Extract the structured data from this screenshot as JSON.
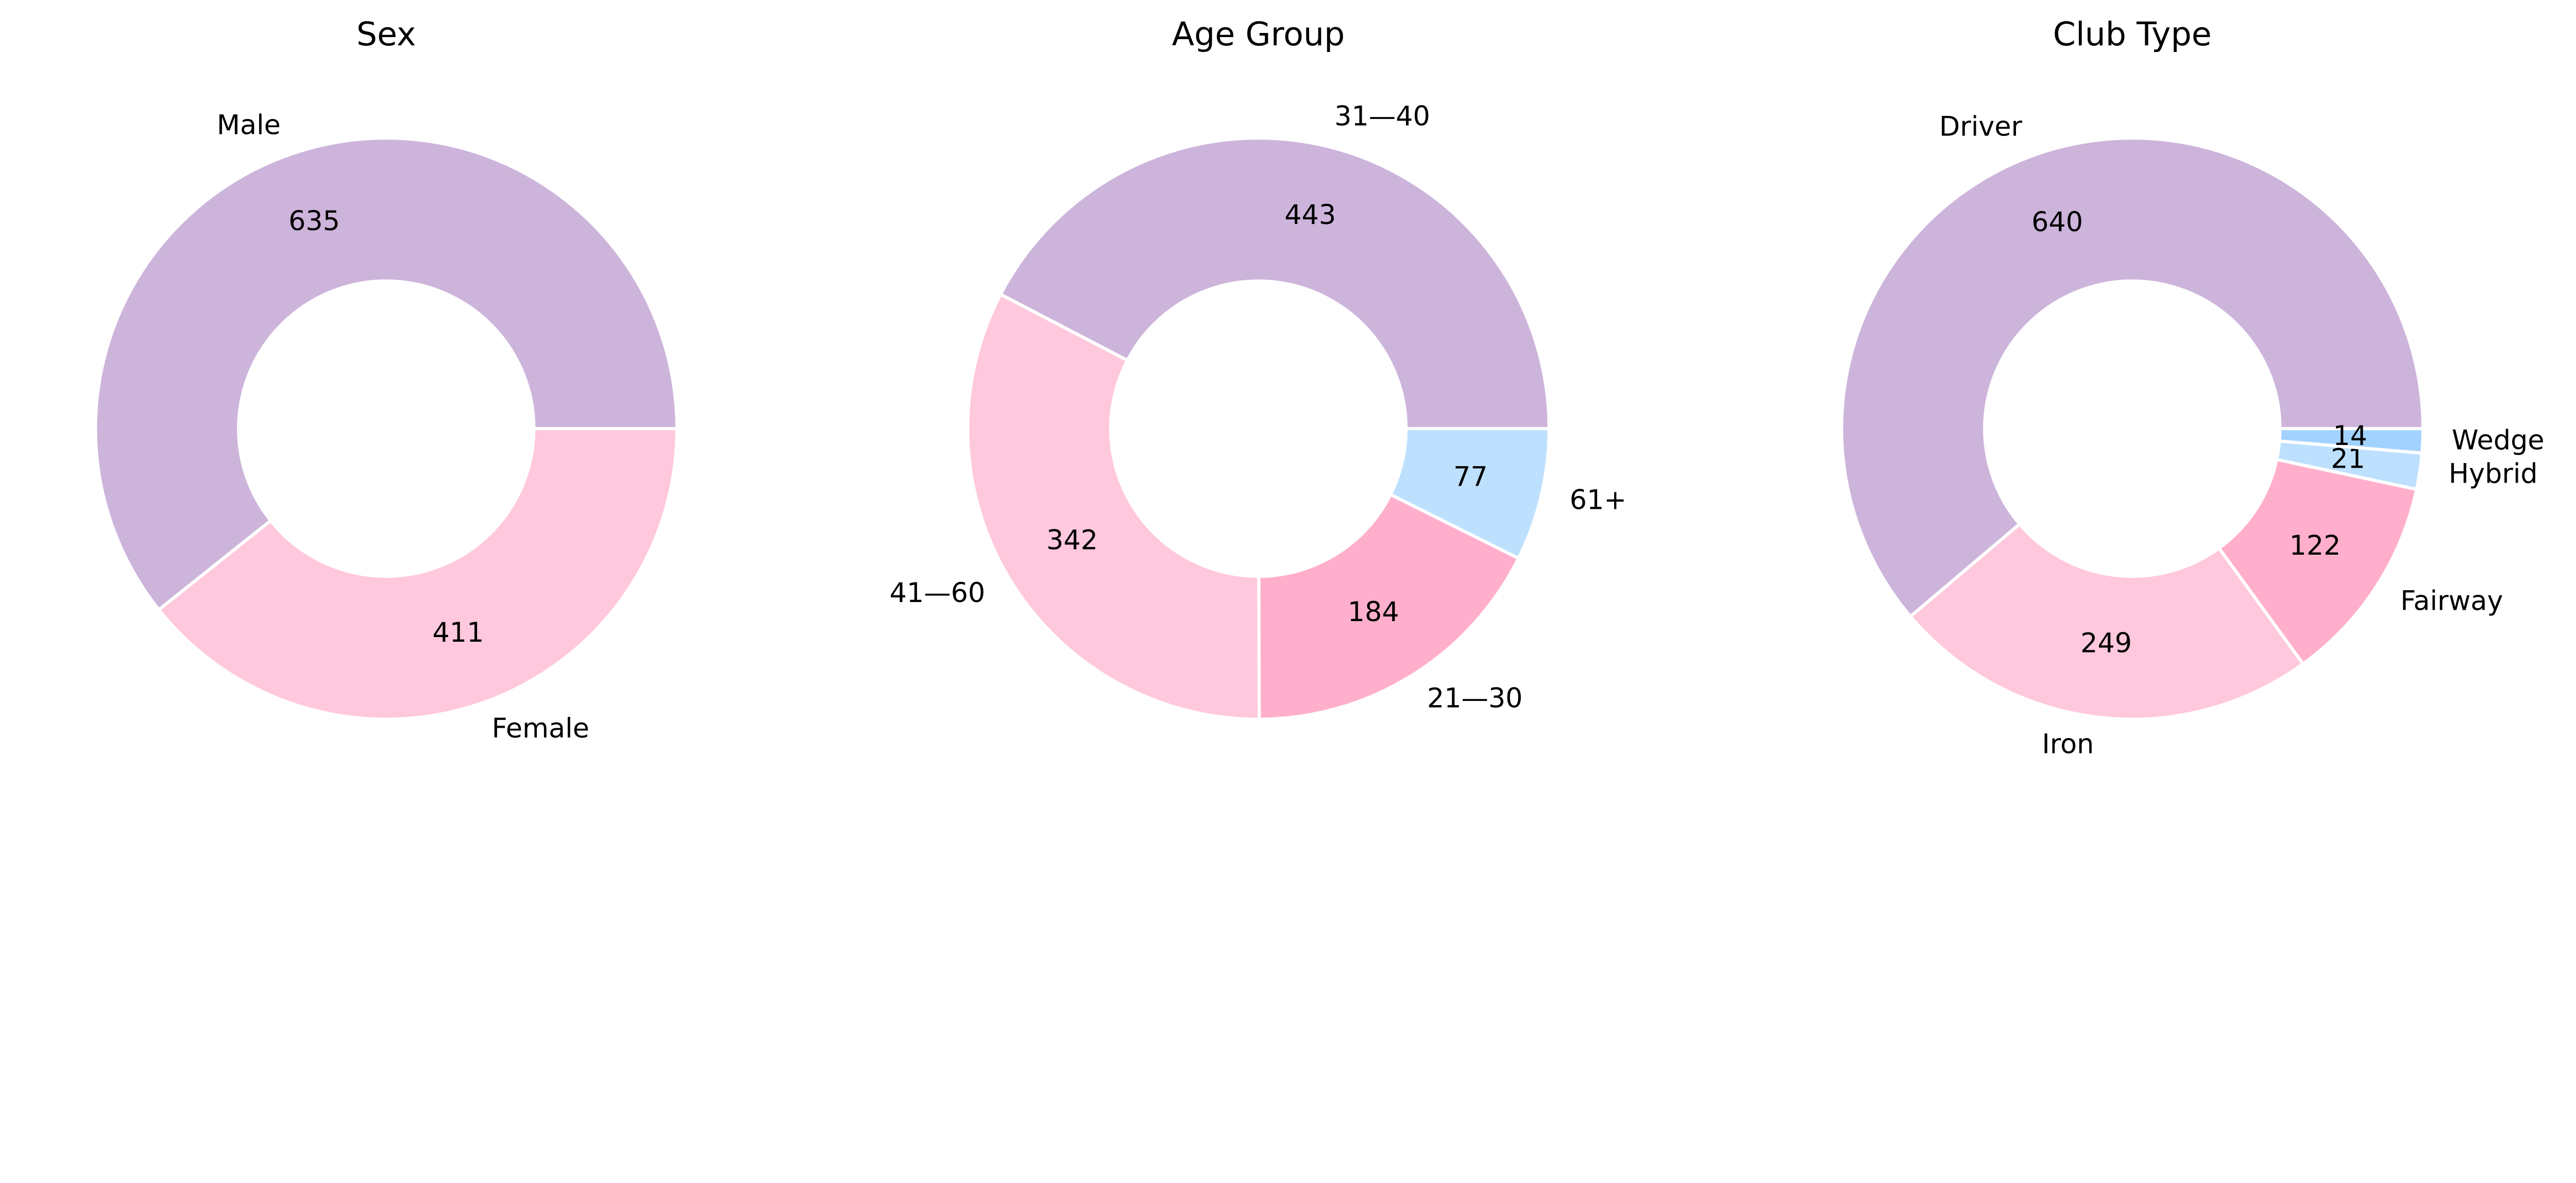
{
  "chart_data": [
    {
      "type": "pie",
      "style": "donut",
      "title": "Sex",
      "categories": [
        "Male",
        "Female"
      ],
      "values": [
        635,
        411
      ],
      "colors": [
        "#cdb4db",
        "#ffc8dd"
      ],
      "start_angle_deg": 0,
      "direction": "counterclockwise"
    },
    {
      "type": "pie",
      "style": "donut",
      "title": "Age Group",
      "categories": [
        "31—40",
        "41—60",
        "21—30",
        "61+"
      ],
      "values": [
        443,
        342,
        184,
        77
      ],
      "colors": [
        "#cdb4db",
        "#ffc8dd",
        "#ffafcc",
        "#bde0fe"
      ],
      "start_angle_deg": 0,
      "direction": "counterclockwise"
    },
    {
      "type": "pie",
      "style": "donut",
      "title": "Club Type",
      "categories": [
        "Driver",
        "Iron",
        "Fairway",
        "Hybrid",
        "Wedge"
      ],
      "values": [
        640,
        249,
        122,
        21,
        14
      ],
      "colors": [
        "#cdb4db",
        "#ffc8dd",
        "#ffafcc",
        "#bde0fe",
        "#a2d2ff"
      ],
      "start_angle_deg": 0,
      "direction": "counterclockwise"
    }
  ]
}
